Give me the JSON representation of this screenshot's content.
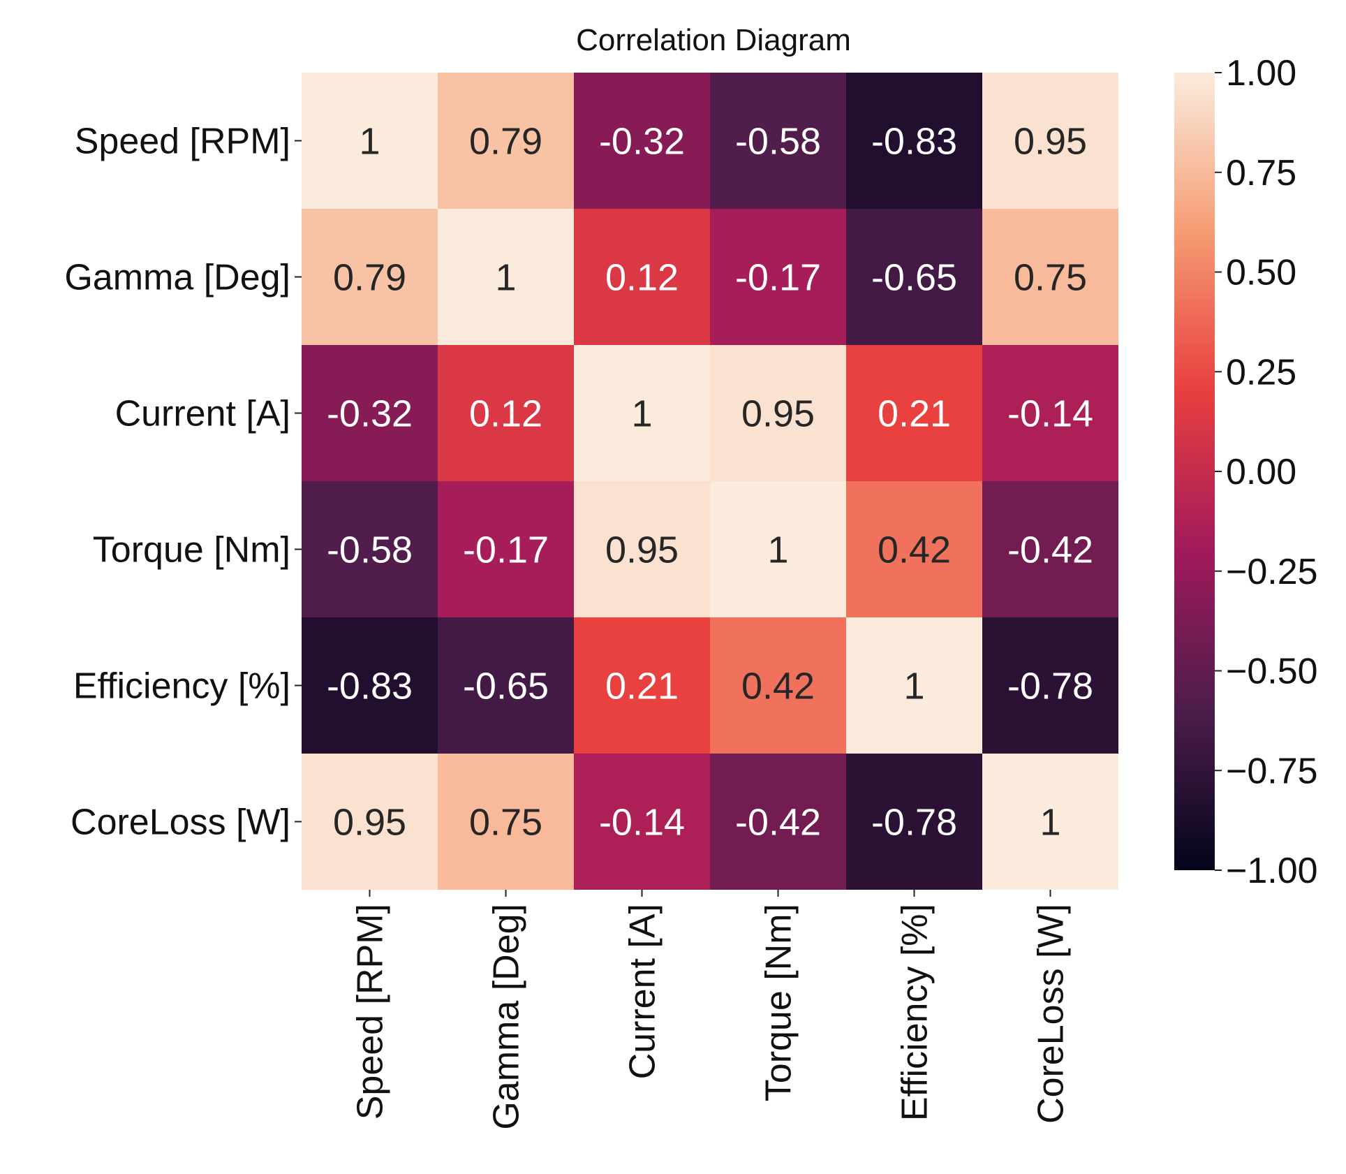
{
  "chart_data": {
    "type": "heatmap",
    "title": "Correlation Diagram",
    "row_labels": [
      "Speed [RPM]",
      "Gamma [Deg]",
      "Current [A]",
      "Torque [Nm]",
      "Efficiency [%]",
      "CoreLoss [W]"
    ],
    "col_labels": [
      "Speed [RPM]",
      "Gamma [Deg]",
      "Current [A]",
      "Torque [Nm]",
      "Efficiency [%]",
      "CoreLoss [W]"
    ],
    "values": [
      [
        1,
        0.79,
        -0.32,
        -0.58,
        -0.83,
        0.95
      ],
      [
        0.79,
        1,
        0.12,
        -0.17,
        -0.65,
        0.75
      ],
      [
        -0.32,
        0.12,
        1,
        0.95,
        0.21,
        -0.14
      ],
      [
        -0.58,
        -0.17,
        0.95,
        1,
        0.42,
        -0.42
      ],
      [
        -0.83,
        -0.65,
        0.21,
        0.42,
        1,
        -0.78
      ],
      [
        0.95,
        0.75,
        -0.14,
        -0.42,
        -0.78,
        1
      ]
    ],
    "colorbar": {
      "range": [
        -1.0,
        1.0
      ],
      "ticks": [
        "1.00",
        "0.75",
        "0.50",
        "0.25",
        "0.00",
        "−0.25",
        "−0.50",
        "−0.75",
        "−1.00"
      ]
    },
    "colormap": "rocket",
    "colormap_stops": [
      "#03051a",
      "#4c1d4b",
      "#a11a5b",
      "#e83f3f",
      "#f69c73",
      "#faebdd"
    ]
  }
}
